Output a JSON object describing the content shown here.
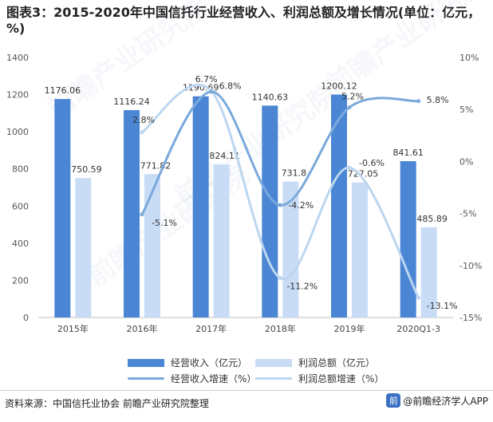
{
  "title": "图表3：2015-2020年中国信托行业经营收入、利润总额及增长情况(单位：亿元，%)",
  "watermark": "前瞻产业研究院",
  "source": "资料来源：中国信托业协会 前瞻产业研究院整理",
  "brand": {
    "text": "@前瞻经济学人APP",
    "badge": "前"
  },
  "colors": {
    "revenue_bar": "#4a86d4",
    "profit_bar": "#c8dcf5",
    "revenue_growth_line": "#7aa9dc",
    "profit_growth_line": "#bcd6ef"
  },
  "legend": [
    {
      "label": "经营收入（亿元）",
      "kind": "bar",
      "color": "#4a86d4"
    },
    {
      "label": "利润总额（亿元）",
      "kind": "bar",
      "color": "#c8dcf5"
    },
    {
      "label": "经营收入增速（%）",
      "kind": "line",
      "color": "#7aa9dc"
    },
    {
      "label": "利润总额增速（%）",
      "kind": "line",
      "color": "#bcd6ef"
    }
  ],
  "chart_data": {
    "type": "bar",
    "categories": [
      "2015年",
      "2016年",
      "2017年",
      "2018年",
      "2019年",
      "2020Q1-3"
    ],
    "series": [
      {
        "name": "经营收入（亿元）",
        "kind": "bar",
        "axis": "left",
        "values": [
          1176.06,
          1116.24,
          1190.69,
          1140.63,
          1200.12,
          841.61
        ],
        "labels": [
          "1176.06",
          "1116.24",
          "1190.69",
          "1140.63",
          "1200.12",
          "841.61"
        ]
      },
      {
        "name": "利润总额（亿元）",
        "kind": "bar",
        "axis": "left",
        "values": [
          750.59,
          771.82,
          824.11,
          731.8,
          727.05,
          485.89
        ],
        "labels": [
          "750.59",
          "771.82",
          "824.11",
          "731.8",
          "727.05",
          "485.89"
        ]
      },
      {
        "name": "经营收入增速（%）",
        "kind": "line",
        "axis": "right",
        "values": [
          null,
          -5.1,
          6.7,
          -4.2,
          5.2,
          5.8
        ],
        "labels": [
          "",
          "-5.1%",
          "6.7%",
          "-4.2%",
          "5.2%",
          "5.8%"
        ]
      },
      {
        "name": "利润总额增速（%）",
        "kind": "line",
        "axis": "right",
        "values": [
          null,
          2.8,
          6.8,
          -11.2,
          -0.6,
          -13.1
        ],
        "labels": [
          "",
          "2.8%",
          "6.8%",
          "-11.2%",
          "-0.6%",
          "-13.1%"
        ]
      }
    ],
    "y_left": {
      "range": [
        0,
        1400
      ],
      "ticks": [
        "0",
        "200",
        "400",
        "600",
        "800",
        "1000",
        "1200",
        "1400"
      ]
    },
    "y_right": {
      "range": [
        -15,
        10
      ],
      "ticks": [
        "-15%",
        "-10%",
        "-5%",
        "0%",
        "5%",
        "10%"
      ]
    },
    "grid": false,
    "legend_position": "bottom"
  }
}
